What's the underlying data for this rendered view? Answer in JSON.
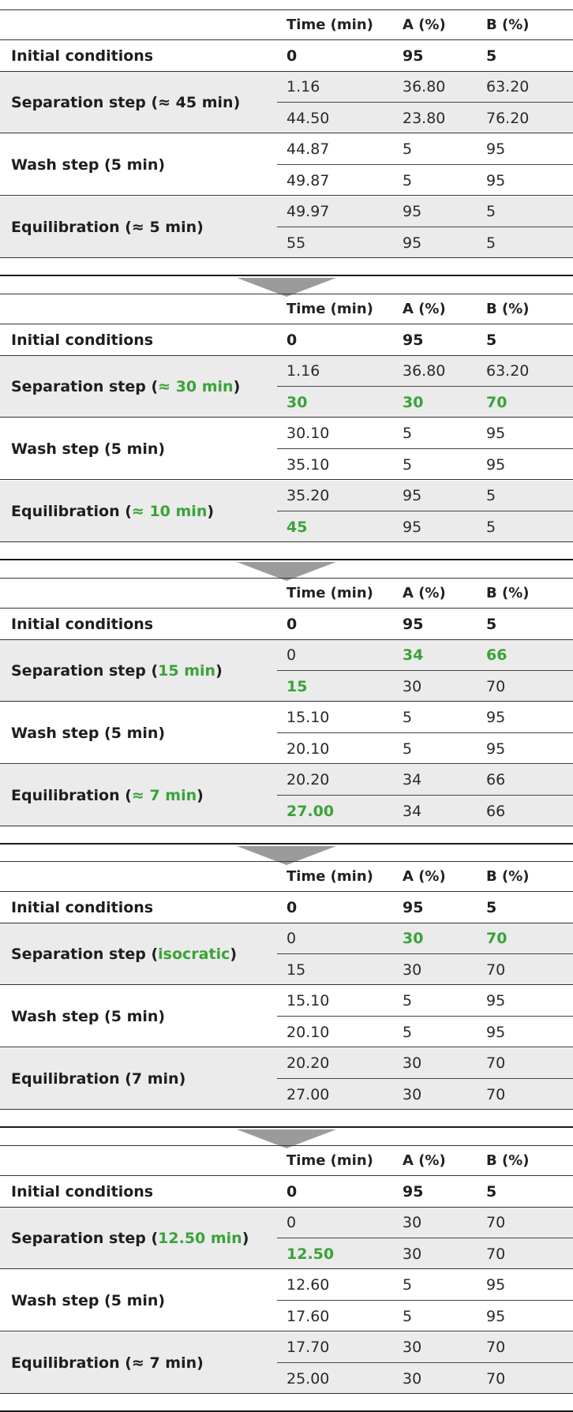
{
  "headers": {
    "time": "Time (min)",
    "a": "A (%)",
    "b": "B (%)"
  },
  "highlight_color": "#3aa339",
  "blocks": [
    {
      "initial": {
        "label": "Initial conditions",
        "time": "0",
        "a": "95",
        "b": "5"
      },
      "groups": [
        {
          "label_pre": "Separation step (≈ 45 min)",
          "label_hl": "",
          "label_post": "",
          "rows": [
            {
              "time": "1.16",
              "a": "36.80",
              "b": "63.20",
              "hl": []
            },
            {
              "time": "44.50",
              "a": "23.80",
              "b": "76.20",
              "hl": []
            }
          ]
        },
        {
          "label_pre": "Wash step (5 min)",
          "label_hl": "",
          "label_post": "",
          "rows": [
            {
              "time": "44.87",
              "a": "5",
              "b": "95",
              "hl": []
            },
            {
              "time": "49.87",
              "a": "5",
              "b": "95",
              "hl": []
            }
          ]
        },
        {
          "label_pre": "Equilibration (≈ 5 min)",
          "label_hl": "",
          "label_post": "",
          "rows": [
            {
              "time": "49.97",
              "a": "95",
              "b": "5",
              "hl": []
            },
            {
              "time": "55",
              "a": "95",
              "b": "5",
              "hl": []
            }
          ]
        }
      ]
    },
    {
      "initial": {
        "label": "Initial conditions",
        "time": "0",
        "a": "95",
        "b": "5"
      },
      "groups": [
        {
          "label_pre": "Separation step (",
          "label_hl": "≈ 30 min",
          "label_post": ")",
          "rows": [
            {
              "time": "1.16",
              "a": "36.80",
              "b": "63.20",
              "hl": []
            },
            {
              "time": "30",
              "a": "30",
              "b": "70",
              "hl": [
                "time",
                "a",
                "b"
              ]
            }
          ]
        },
        {
          "label_pre": "Wash step (5 min)",
          "label_hl": "",
          "label_post": "",
          "rows": [
            {
              "time": "30.10",
              "a": "5",
              "b": "95",
              "hl": []
            },
            {
              "time": "35.10",
              "a": "5",
              "b": "95",
              "hl": []
            }
          ]
        },
        {
          "label_pre": "Equilibration (",
          "label_hl": "≈ 10 min",
          "label_post": ")",
          "rows": [
            {
              "time": "35.20",
              "a": "95",
              "b": "5",
              "hl": []
            },
            {
              "time": "45",
              "a": "95",
              "b": "5",
              "hl": [
                "time"
              ]
            }
          ]
        }
      ]
    },
    {
      "initial": {
        "label": "Initial conditions",
        "time": "0",
        "a": "95",
        "b": "5"
      },
      "groups": [
        {
          "label_pre": "Separation step (",
          "label_hl": "15 min",
          "label_post": ")",
          "rows": [
            {
              "time": "0",
              "a": "34",
              "b": "66",
              "hl": [
                "a",
                "b"
              ]
            },
            {
              "time": "15",
              "a": "30",
              "b": "70",
              "hl": [
                "time"
              ]
            }
          ]
        },
        {
          "label_pre": "Wash step (5 min)",
          "label_hl": "",
          "label_post": "",
          "rows": [
            {
              "time": "15.10",
              "a": "5",
              "b": "95",
              "hl": []
            },
            {
              "time": "20.10",
              "a": "5",
              "b": "95",
              "hl": []
            }
          ]
        },
        {
          "label_pre": "Equilibration (",
          "label_hl": "≈ 7 min",
          "label_post": ")",
          "rows": [
            {
              "time": "20.20",
              "a": "34",
              "b": "66",
              "hl": []
            },
            {
              "time": "27.00",
              "a": "34",
              "b": "66",
              "hl": [
                "time"
              ]
            }
          ]
        }
      ]
    },
    {
      "initial": {
        "label": "Initial conditions",
        "time": "0",
        "a": "95",
        "b": "5"
      },
      "groups": [
        {
          "label_pre": "Separation step (",
          "label_hl": "isocratic",
          "label_post": ")",
          "rows": [
            {
              "time": "0",
              "a": "30",
              "b": "70",
              "hl": [
                "a",
                "b"
              ]
            },
            {
              "time": "15",
              "a": "30",
              "b": "70",
              "hl": []
            }
          ]
        },
        {
          "label_pre": "Wash step (5 min)",
          "label_hl": "",
          "label_post": "",
          "rows": [
            {
              "time": "15.10",
              "a": "5",
              "b": "95",
              "hl": []
            },
            {
              "time": "20.10",
              "a": "5",
              "b": "95",
              "hl": []
            }
          ]
        },
        {
          "label_pre": "Equilibration (7 min)",
          "label_hl": "",
          "label_post": "",
          "rows": [
            {
              "time": "20.20",
              "a": "30",
              "b": "70",
              "hl": []
            },
            {
              "time": "27.00",
              "a": "30",
              "b": "70",
              "hl": []
            }
          ]
        }
      ]
    },
    {
      "initial": {
        "label": "Initial conditions",
        "time": "0",
        "a": "95",
        "b": "5"
      },
      "groups": [
        {
          "label_pre": "Separation step (",
          "label_hl": "12.50 min",
          "label_post": ")",
          "rows": [
            {
              "time": "0",
              "a": "30",
              "b": "70",
              "hl": []
            },
            {
              "time": "12.50",
              "a": "30",
              "b": "70",
              "hl": [
                "time"
              ]
            }
          ]
        },
        {
          "label_pre": "Wash step (5 min)",
          "label_hl": "",
          "label_post": "",
          "rows": [
            {
              "time": "12.60",
              "a": "5",
              "b": "95",
              "hl": []
            },
            {
              "time": "17.60",
              "a": "5",
              "b": "95",
              "hl": []
            }
          ]
        },
        {
          "label_pre": "Equilibration (≈ 7 min)",
          "label_hl": "",
          "label_post": "",
          "rows": [
            {
              "time": "17.70",
              "a": "30",
              "b": "70",
              "hl": []
            },
            {
              "time": "25.00",
              "a": "30",
              "b": "70",
              "hl": []
            }
          ]
        }
      ]
    }
  ]
}
